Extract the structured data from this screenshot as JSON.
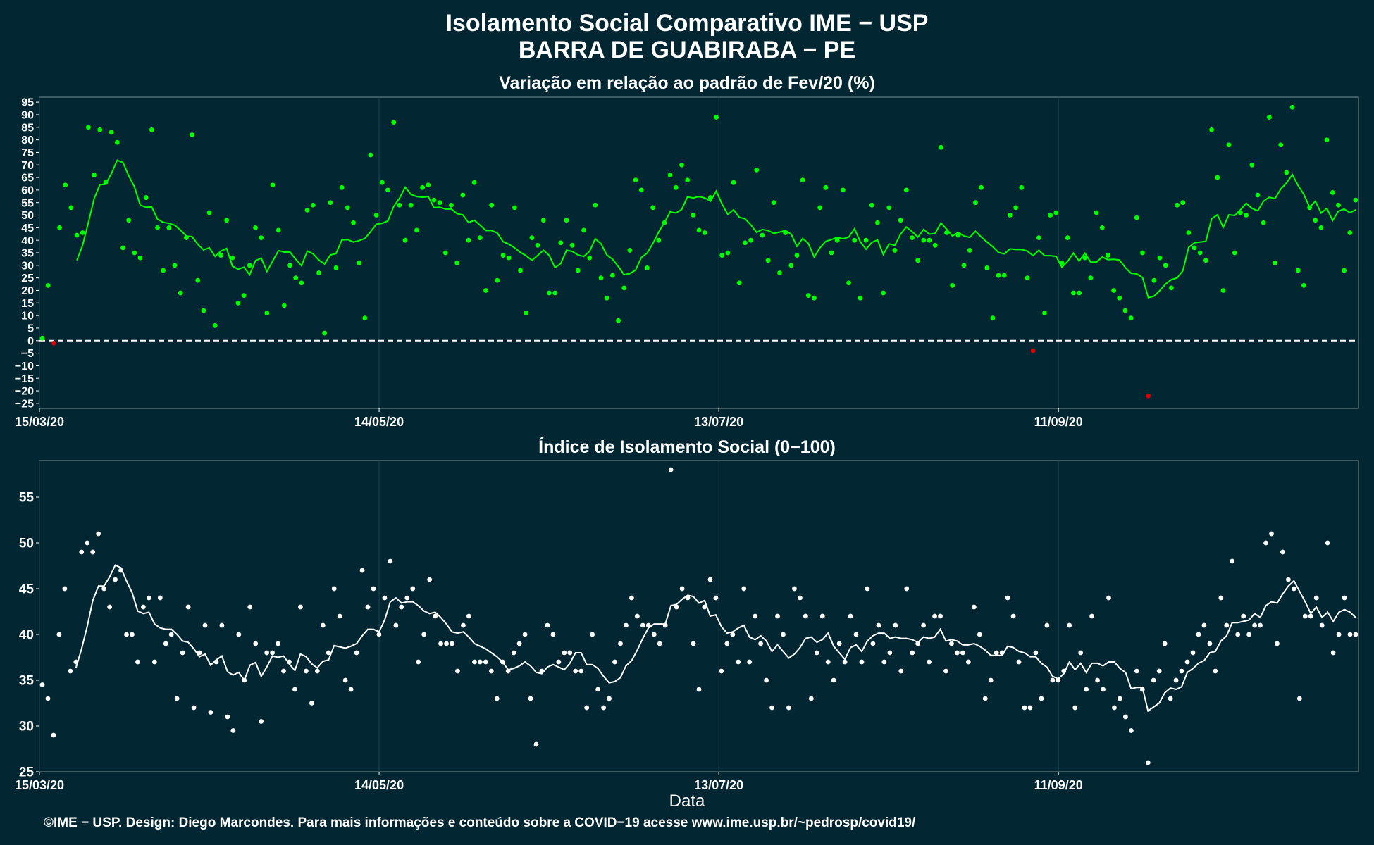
{
  "title_line1": "Isolamento Social Comparativo IME − USP",
  "title_line2": "BARRA DE GUABIRABA − PE",
  "footer": "©IME − USP. Design: Diego Marcondes. Para mais informações e conteúdo sobre a COVID−19 acesse www.ime.usp.br/~pedrosp/covid19/",
  "colors": {
    "background": "#022733",
    "green": "#00ff00",
    "red": "#e00000",
    "white": "#ffffff",
    "grid": "#1c4552"
  },
  "chart_data": [
    {
      "type": "scatter",
      "title": "Variação em relação ao padrão de Fev/20 (%)",
      "xlabel": "",
      "ylabel": "",
      "x_ticks": [
        "15/03/20",
        "14/05/20",
        "13/07/20",
        "11/09/20"
      ],
      "x_tick_days": [
        0,
        60,
        120,
        180
      ],
      "xlim": [
        0,
        233
      ],
      "ylim": [
        -27,
        97
      ],
      "y_ticks": [
        -25,
        -20,
        -15,
        -10,
        -5,
        0,
        5,
        10,
        15,
        20,
        25,
        30,
        35,
        40,
        45,
        50,
        55,
        60,
        65,
        70,
        75,
        80,
        85,
        90,
        95
      ],
      "reference_line": 0,
      "x_unit": "days since 15/03/20",
      "points": [
        1,
        22,
        -1,
        45,
        62,
        53,
        42,
        43,
        85,
        66,
        84,
        63,
        83,
        79,
        37,
        48,
        35,
        33,
        57,
        84,
        45,
        28,
        45,
        30,
        19,
        41,
        82,
        24,
        12,
        51,
        6,
        34,
        48,
        33,
        15,
        18,
        30,
        45,
        41,
        11,
        62,
        44,
        14,
        30,
        25,
        23,
        52,
        54,
        27,
        3,
        55,
        29,
        61,
        53,
        47,
        31,
        9,
        74,
        50,
        63,
        60,
        87,
        54,
        40,
        54,
        44,
        61,
        62,
        56,
        55,
        35,
        54,
        31,
        58,
        40,
        63,
        41,
        20,
        54,
        24,
        34,
        33,
        53,
        28,
        11,
        41,
        38,
        48,
        19,
        19,
        39,
        48,
        38,
        28,
        44,
        33,
        54,
        25,
        17,
        26,
        8,
        21,
        36,
        64,
        60,
        29,
        53,
        40,
        47,
        66,
        61,
        70,
        64,
        50,
        44,
        43,
        57,
        89,
        34,
        35,
        63,
        23,
        39,
        40,
        68,
        42,
        32,
        55,
        27,
        43,
        30,
        34,
        64,
        18,
        17,
        53,
        61,
        35,
        40,
        60,
        23,
        40,
        17,
        40,
        54,
        47,
        19,
        53,
        36,
        48,
        60,
        41,
        32,
        40,
        40,
        38,
        77,
        43,
        22,
        42,
        30,
        36,
        55,
        61,
        29,
        9,
        26,
        26,
        50,
        53,
        61,
        25,
        -4,
        41,
        11,
        50,
        51,
        31,
        41,
        19,
        19,
        33,
        25,
        51,
        45,
        34,
        20,
        17,
        12,
        9,
        49,
        35,
        -22,
        24,
        33,
        30,
        21,
        54,
        55,
        43,
        37,
        35,
        32,
        84,
        65,
        20,
        78,
        35,
        51,
        50,
        70,
        58,
        47,
        89,
        31,
        78,
        67,
        93,
        28,
        22,
        53,
        48,
        45,
        80,
        59,
        54,
        28,
        43,
        56
      ]
    },
    {
      "type": "scatter",
      "title": "Índice de Isolamento Social (0−100)",
      "xlabel": "Data",
      "ylabel": "",
      "x_ticks": [
        "15/03/20",
        "14/05/20",
        "13/07/20",
        "11/09/20"
      ],
      "x_tick_days": [
        0,
        60,
        120,
        180
      ],
      "xlim": [
        0,
        233
      ],
      "ylim": [
        25,
        59
      ],
      "y_ticks": [
        25,
        30,
        35,
        40,
        45,
        50,
        55
      ],
      "x_unit": "days since 15/03/20",
      "points": [
        34.5,
        33,
        29,
        40,
        45,
        36,
        37,
        49,
        50,
        49,
        51,
        45,
        43,
        46,
        47,
        40,
        40,
        37,
        43,
        44,
        37,
        44,
        39,
        40,
        33,
        38,
        43,
        32,
        38,
        41,
        31.5,
        37,
        41,
        31,
        29.5,
        40,
        35,
        43,
        39,
        30.5,
        38,
        38,
        39,
        36,
        37,
        34,
        43,
        36,
        32.5,
        36,
        41,
        38,
        45,
        42,
        35,
        34,
        38,
        47,
        43,
        45,
        40,
        44,
        48,
        41,
        43,
        44,
        45,
        37,
        40,
        46,
        42,
        39,
        39,
        39,
        36,
        41,
        42,
        37,
        37,
        37,
        36,
        33,
        37,
        36,
        38,
        39,
        40,
        33,
        28,
        36,
        41,
        40,
        37,
        38,
        38,
        36,
        36,
        32,
        40,
        34,
        32,
        33,
        37,
        39,
        41,
        44,
        42,
        41,
        41,
        40,
        39,
        41,
        58,
        43,
        45,
        44,
        39,
        34,
        43,
        46,
        44,
        36,
        39,
        40,
        37,
        45,
        37,
        42,
        39,
        35,
        32,
        42,
        40,
        32,
        45,
        44,
        42,
        33,
        38,
        42,
        37,
        35,
        39,
        37,
        42,
        40,
        37,
        45,
        39,
        41,
        37,
        38,
        41,
        36,
        45,
        38,
        39,
        41,
        37,
        42,
        42,
        36,
        39,
        38,
        38,
        37,
        43,
        40,
        33,
        35,
        38,
        38,
        44,
        42,
        37,
        32,
        32,
        38,
        33,
        41,
        35,
        35,
        36,
        41,
        32,
        38,
        34,
        42,
        35,
        34,
        44,
        32,
        33,
        31,
        29.5,
        36,
        34,
        26,
        35,
        36,
        39,
        33,
        35,
        36,
        37,
        38,
        40,
        41,
        39,
        36,
        44,
        41,
        48,
        40,
        42,
        40,
        41,
        41,
        50,
        51,
        39,
        49,
        46,
        45,
        33,
        42,
        42,
        44,
        41,
        50,
        38,
        40,
        44,
        40,
        40
      ]
    }
  ]
}
